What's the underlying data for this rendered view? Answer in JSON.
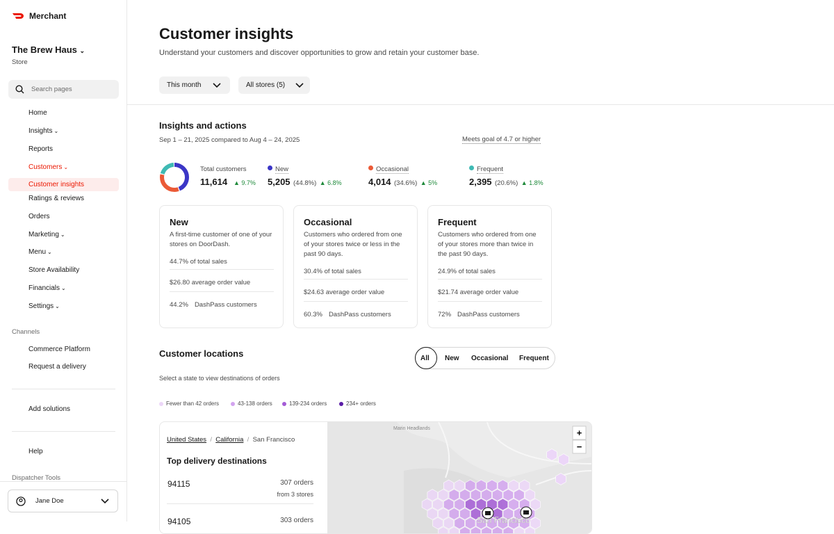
{
  "sidebar": {
    "brand": "Merchant",
    "store_name": "The Brew Haus",
    "store_type": "Store",
    "search_placeholder": "Search pages",
    "nav": [
      "Home",
      "Insights",
      "Reports",
      "Customers",
      "Orders",
      "Marketing",
      "Menu",
      "Store Availability",
      "Financials",
      "Settings"
    ],
    "customers_sub": [
      "Customer insights",
      "Ratings & reviews"
    ],
    "channels_heading": "Channels",
    "channels": [
      "Commerce Platform",
      "Request a delivery"
    ],
    "add_solutions": "Add solutions",
    "help": "Help",
    "dispatcher_tools": "Dispatcher Tools",
    "user": "Jane Doe"
  },
  "header": {
    "title": "Customer insights",
    "subtitle": "Understand your customers and discover opportunities to grow and retain your customer base.",
    "filters": [
      "This month",
      "All stores (5)"
    ]
  },
  "insights": {
    "title": "Insights and actions",
    "date_range": "Sep 1 – 21, 2025 compared to Aug 4 – 24, 2025",
    "goal_link": "Meets goal of 4.7 or higher",
    "total": {
      "label": "Total customers",
      "value": "11,614",
      "change": "▲ 9.7%"
    },
    "segments": [
      {
        "label": "New",
        "value": "5,205",
        "share": 44.8,
        "share_label": "(44.8%)",
        "change": "▲ 6.8%",
        "color": "#3b36c6"
      },
      {
        "label": "Occasional",
        "value": "4,014",
        "share": 34.6,
        "share_label": "(34.6%)",
        "change": "▲ 5%",
        "color": "#eb5a37"
      },
      {
        "label": "Frequent",
        "value": "2,395",
        "share": 20.6,
        "share_label": "(20.6%)",
        "change": "▲ 1.8%",
        "color": "#3fbab4"
      }
    ]
  },
  "cards": [
    {
      "title": "New",
      "description": "A first-time customer of one of your stores on DoorDash.",
      "sales": "44.7% of total sales",
      "aov": "$26.80 average order value",
      "dashpass_pct": "44.2%",
      "dashpass_label": "DashPass customers"
    },
    {
      "title": "Occasional",
      "description": "Customers who ordered from one of your stores twice or less in the past 90 days.",
      "sales": "30.4% of total sales",
      "aov": "$24.63 average order value",
      "dashpass_pct": "60.3%",
      "dashpass_label": "DashPass customers"
    },
    {
      "title": "Frequent",
      "description": "Customers who ordered from one of your stores more than twice in the past 90 days.",
      "sales": "24.9% of total sales",
      "aov": "$21.74 average order value",
      "dashpass_pct": "72%",
      "dashpass_label": "DashPass customers"
    }
  ],
  "locations": {
    "title": "Customer locations",
    "hint": "Select a state to view destinations of orders",
    "tabs": [
      "All",
      "New",
      "Occasional",
      "Frequent"
    ],
    "legend": [
      {
        "label": "Fewer than 42 orders",
        "color": "#ecd6f8"
      },
      {
        "label": "43-138 orders",
        "color": "#d2a3ef"
      },
      {
        "label": "139-234 orders",
        "color": "#a45cd6"
      },
      {
        "label": "234+ orders",
        "color": "#5a1ca6"
      }
    ],
    "breadcrumbs": [
      "United States",
      "California",
      "San Francisco"
    ],
    "list_title": "Top delivery destinations",
    "destinations": [
      {
        "zip": "94115",
        "orders": "307 orders",
        "stores": "from 3 stores"
      },
      {
        "zip": "94105",
        "orders": "303 orders"
      }
    ],
    "map_labels": [
      "Marin Headlands",
      "San Francisco"
    ],
    "zoom": [
      "+",
      "−"
    ]
  }
}
